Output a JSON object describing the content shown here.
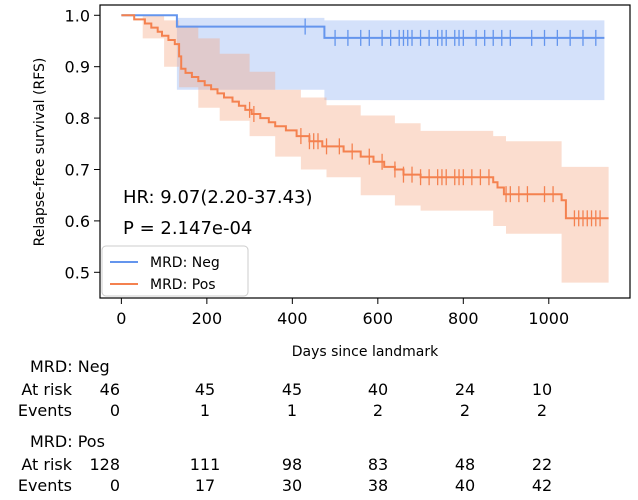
{
  "chart_data": {
    "type": "line",
    "subtype": "kaplan-meier",
    "title": "",
    "xlabel": "Days since landmark",
    "ylabel": "Relapse-free survival (RFS)",
    "xlim": [
      -50,
      1190
    ],
    "ylim": [
      0.45,
      1.02
    ],
    "xticks": [
      0,
      200,
      400,
      600,
      800,
      1000
    ],
    "yticks": [
      0.5,
      0.6,
      0.7,
      0.8,
      0.9,
      1.0
    ],
    "xtick_labels": [
      "0",
      "200",
      "400",
      "600",
      "800",
      "1000"
    ],
    "ytick_labels": [
      "0.5",
      "0.6",
      "0.7",
      "0.8",
      "0.9",
      "1.0"
    ],
    "legend": {
      "position": "lower-left"
    },
    "annotations": {
      "hr": "HR: 9.07(2.20-37.43)",
      "p": "P = 2.147e-04"
    },
    "series": [
      {
        "name": "MRD: Neg",
        "label": "MRD: Neg",
        "color": "#6495ED",
        "band_color": "#6495ED",
        "steps": [
          [
            0,
            1.0
          ],
          [
            130,
            0.978
          ],
          [
            475,
            0.956
          ],
          [
            1130,
            0.956
          ]
        ],
        "ci_steps": [
          [
            30,
            1.0,
            1.0
          ],
          [
            130,
            0.855,
            0.995
          ],
          [
            475,
            0.835,
            0.99
          ],
          [
            1130,
            0.835,
            0.99
          ]
        ],
        "censors": [
          430,
          500,
          530,
          560,
          580,
          610,
          630,
          650,
          660,
          670,
          680,
          700,
          720,
          740,
          750,
          760,
          780,
          790,
          800,
          830,
          850,
          870,
          890,
          910,
          960,
          990,
          1020,
          1050,
          1080,
          1110
        ]
      },
      {
        "name": "MRD: Pos",
        "label": "MRD: Pos",
        "color": "#F4814F",
        "band_color": "#F4A582",
        "steps": [
          [
            0,
            1.0
          ],
          [
            30,
            0.992
          ],
          [
            55,
            0.984
          ],
          [
            70,
            0.976
          ],
          [
            85,
            0.968
          ],
          [
            95,
            0.96
          ],
          [
            110,
            0.952
          ],
          [
            125,
            0.944
          ],
          [
            135,
            0.92
          ],
          [
            140,
            0.896
          ],
          [
            150,
            0.888
          ],
          [
            165,
            0.88
          ],
          [
            180,
            0.872
          ],
          [
            195,
            0.864
          ],
          [
            210,
            0.856
          ],
          [
            225,
            0.848
          ],
          [
            240,
            0.84
          ],
          [
            260,
            0.832
          ],
          [
            275,
            0.824
          ],
          [
            290,
            0.816
          ],
          [
            305,
            0.808
          ],
          [
            325,
            0.8
          ],
          [
            345,
            0.792
          ],
          [
            360,
            0.784
          ],
          [
            385,
            0.776
          ],
          [
            410,
            0.765
          ],
          [
            440,
            0.755
          ],
          [
            470,
            0.745
          ],
          [
            520,
            0.735
          ],
          [
            560,
            0.725
          ],
          [
            590,
            0.715
          ],
          [
            615,
            0.705
          ],
          [
            640,
            0.7
          ],
          [
            660,
            0.69
          ],
          [
            700,
            0.685
          ],
          [
            870,
            0.675
          ],
          [
            880,
            0.665
          ],
          [
            895,
            0.652
          ],
          [
            1030,
            0.64
          ],
          [
            1040,
            0.605
          ],
          [
            1140,
            0.605
          ]
        ],
        "ci_steps": [
          [
            20,
            1.0,
            1.0
          ],
          [
            50,
            0.955,
            1.0
          ],
          [
            100,
            0.9,
            0.99
          ],
          [
            135,
            0.86,
            0.98
          ],
          [
            180,
            0.82,
            0.955
          ],
          [
            230,
            0.795,
            0.925
          ],
          [
            300,
            0.765,
            0.89
          ],
          [
            360,
            0.725,
            0.855
          ],
          [
            420,
            0.7,
            0.84
          ],
          [
            480,
            0.685,
            0.825
          ],
          [
            560,
            0.65,
            0.805
          ],
          [
            640,
            0.63,
            0.79
          ],
          [
            700,
            0.62,
            0.775
          ],
          [
            870,
            0.59,
            0.765
          ],
          [
            900,
            0.575,
            0.755
          ],
          [
            1030,
            0.48,
            0.705
          ],
          [
            1140,
            0.48,
            0.705
          ]
        ],
        "censors": [
          300,
          310,
          420,
          440,
          450,
          460,
          480,
          510,
          540,
          580,
          610,
          640,
          660,
          680,
          700,
          720,
          740,
          750,
          760,
          780,
          790,
          800,
          820,
          840,
          860,
          900,
          910,
          930,
          950,
          990,
          1010,
          1060,
          1070,
          1080,
          1090,
          1100,
          1110,
          1120
        ]
      }
    ]
  },
  "risk_table": {
    "groups": [
      {
        "title": "MRD: Neg",
        "rows": [
          {
            "label": "At risk",
            "values": [
              "46",
              "45",
              "45",
              "40",
              "24",
              "10"
            ]
          },
          {
            "label": "Events",
            "values": [
              "0",
              "1",
              "1",
              "2",
              "2",
              "2"
            ]
          }
        ]
      },
      {
        "title": "MRD: Pos",
        "rows": [
          {
            "label": "At risk",
            "values": [
              "128",
              "111",
              "98",
              "83",
              "48",
              "22"
            ]
          },
          {
            "label": "Events",
            "values": [
              "0",
              "17",
              "30",
              "38",
              "40",
              "42"
            ]
          }
        ]
      }
    ]
  }
}
